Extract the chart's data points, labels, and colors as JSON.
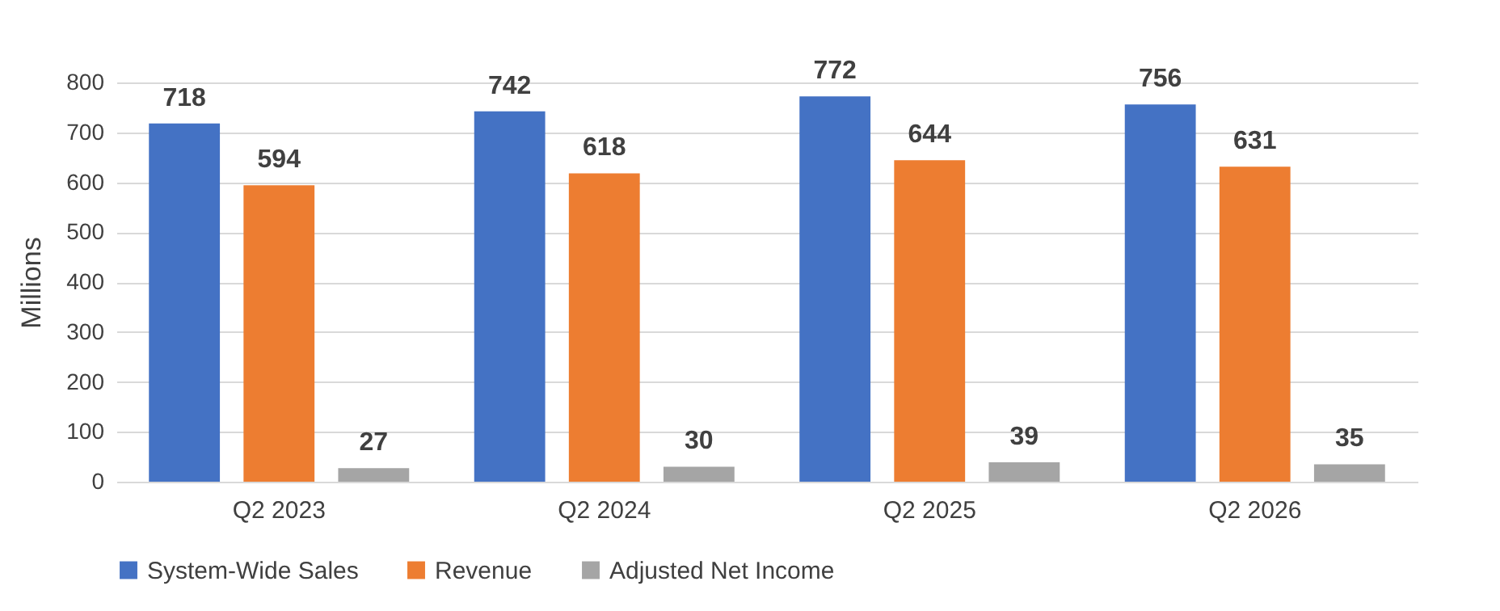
{
  "chart_data": {
    "type": "bar",
    "ylabel": "Millions",
    "categories": [
      "Q2 2023",
      "Q2 2024",
      "Q2 2025",
      "Q2 2026"
    ],
    "series": [
      {
        "name": "System-Wide Sales",
        "color": "#4472c4",
        "values": [
          718,
          742,
          772,
          756
        ]
      },
      {
        "name": "Revenue",
        "color": "#ed7d31",
        "values": [
          594,
          618,
          644,
          631
        ]
      },
      {
        "name": "Adjusted Net Income",
        "color": "#a5a5a5",
        "values": [
          27,
          30,
          39,
          35
        ]
      }
    ],
    "ylim": [
      0,
      800
    ],
    "yticks": [
      0,
      100,
      200,
      300,
      400,
      500,
      600,
      700,
      800
    ],
    "grid": "y",
    "legend": "bottom",
    "data_labels": true
  }
}
